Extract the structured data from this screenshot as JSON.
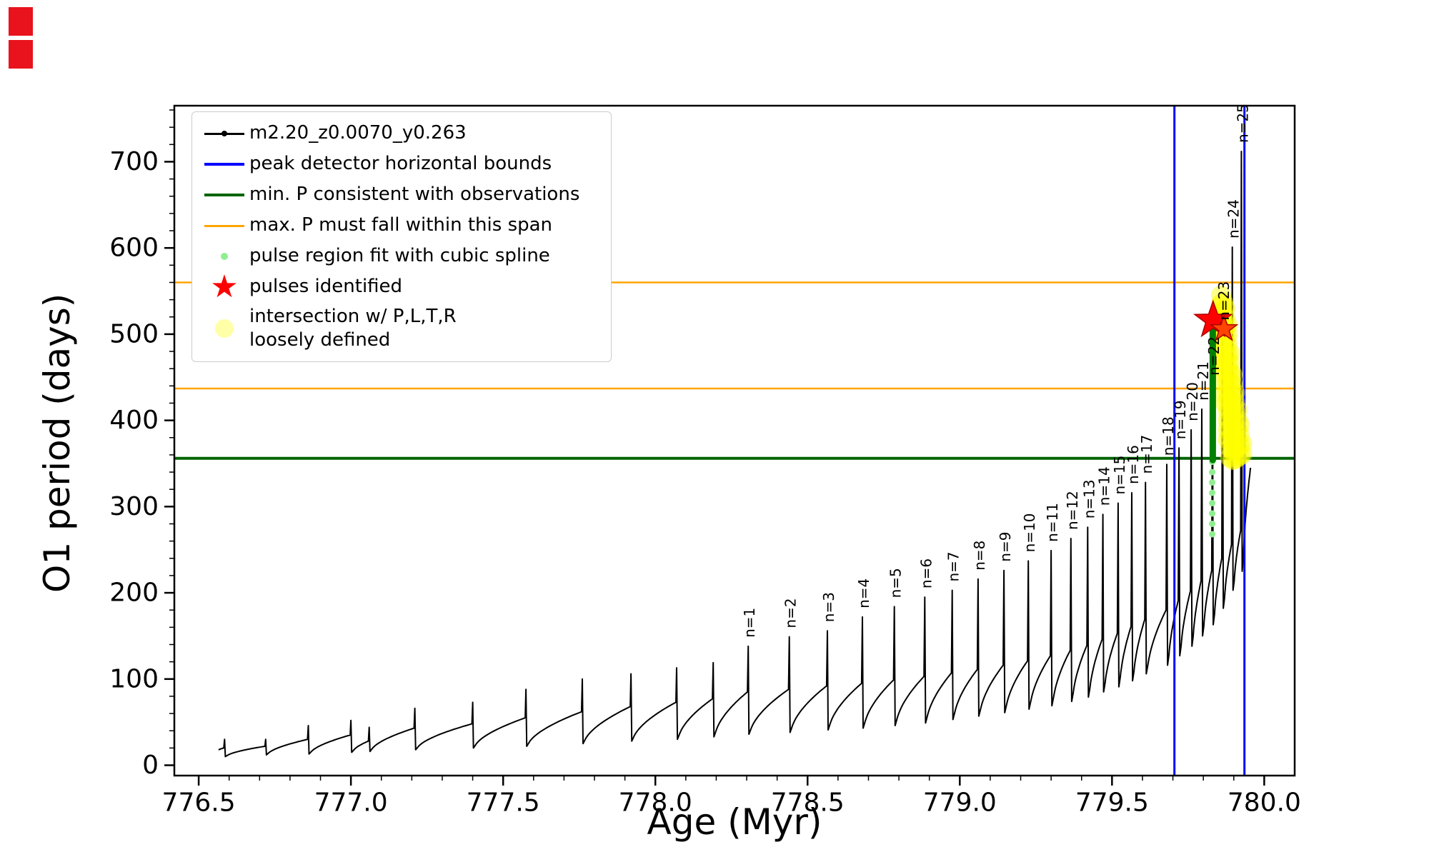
{
  "chart_data": {
    "type": "line",
    "title": "",
    "xlabel": "Age (Myr)",
    "ylabel": "O1 period (days)",
    "xlim": [
      776.42,
      780.1
    ],
    "ylim": [
      -12,
      765
    ],
    "x_ticks": [
      776.5,
      777.0,
      777.5,
      778.0,
      778.5,
      779.0,
      779.5,
      780.0
    ],
    "x_tick_labels": [
      "776.5",
      "777.0",
      "777.5",
      "778.0",
      "778.5",
      "779.0",
      "779.5",
      "780.0"
    ],
    "y_ticks": [
      0,
      100,
      200,
      300,
      400,
      500,
      600,
      700
    ],
    "y_tick_labels": [
      "0",
      "100",
      "200",
      "300",
      "400",
      "500",
      "600",
      "700"
    ],
    "x_minor_step": 0.1,
    "y_minor_step": 20,
    "series_name": "m2.20_z0.0070_y0.263",
    "series_color": "#000000",
    "vlines": [
      {
        "x": 779.705,
        "color": "#0000ff"
      },
      {
        "x": 779.935,
        "color": "#0000ff"
      }
    ],
    "hlines": [
      {
        "y": 356,
        "color": "#006400",
        "width": 4
      },
      {
        "y": 437,
        "color": "#ffa500",
        "width": 2.5
      },
      {
        "y": 560,
        "color": "#ffa500",
        "width": 2.5
      }
    ],
    "series_start": {
      "x": 776.565,
      "y": 18
    },
    "series_end": {
      "x": 779.955,
      "y": 345
    },
    "pulses": [
      {
        "x": 776.585,
        "peak": 30,
        "base": 20,
        "dip": 10
      },
      {
        "x": 776.72,
        "peak": 30,
        "base": 22,
        "dip": 12
      },
      {
        "x": 776.86,
        "peak": 46,
        "base": 30,
        "dip": 13
      },
      {
        "x": 777.0,
        "peak": 52,
        "base": 35,
        "dip": 15
      },
      {
        "x": 777.06,
        "peak": 44,
        "base": 28,
        "dip": 16
      },
      {
        "x": 777.21,
        "peak": 66,
        "base": 43,
        "dip": 18
      },
      {
        "x": 777.4,
        "peak": 73,
        "base": 48,
        "dip": 20
      },
      {
        "x": 777.575,
        "peak": 88,
        "base": 55,
        "dip": 22
      },
      {
        "x": 777.76,
        "peak": 100,
        "base": 62,
        "dip": 25
      },
      {
        "x": 777.92,
        "peak": 106,
        "base": 68,
        "dip": 28
      },
      {
        "x": 778.07,
        "peak": 113,
        "base": 73,
        "dip": 30
      },
      {
        "x": 778.19,
        "peak": 119,
        "base": 77,
        "dip": 33
      },
      {
        "x": 778.305,
        "peak": 138,
        "base": 85,
        "dip": 36,
        "label": "n=1"
      },
      {
        "x": 778.44,
        "peak": 149,
        "base": 88,
        "dip": 38,
        "label": "n=2"
      },
      {
        "x": 778.565,
        "peak": 156,
        "base": 92,
        "dip": 41,
        "label": "n=3"
      },
      {
        "x": 778.68,
        "peak": 172,
        "base": 95,
        "dip": 43,
        "label": "n=4"
      },
      {
        "x": 778.785,
        "peak": 184,
        "base": 99,
        "dip": 46,
        "label": "n=5"
      },
      {
        "x": 778.885,
        "peak": 195,
        "base": 103,
        "dip": 49,
        "label": "n=6"
      },
      {
        "x": 778.975,
        "peak": 203,
        "base": 107,
        "dip": 53,
        "label": "n=7"
      },
      {
        "x": 779.06,
        "peak": 216,
        "base": 111,
        "dip": 57,
        "label": "n=8"
      },
      {
        "x": 779.145,
        "peak": 226,
        "base": 116,
        "dip": 61,
        "label": "n=9"
      },
      {
        "x": 779.225,
        "peak": 237,
        "base": 121,
        "dip": 65,
        "label": "n=10"
      },
      {
        "x": 779.3,
        "peak": 249,
        "base": 127,
        "dip": 69,
        "label": "n=11"
      },
      {
        "x": 779.365,
        "peak": 263,
        "base": 133,
        "dip": 74,
        "label": "n=12"
      },
      {
        "x": 779.42,
        "peak": 276,
        "base": 139,
        "dip": 79,
        "label": "n=13"
      },
      {
        "x": 779.47,
        "peak": 291,
        "base": 146,
        "dip": 85,
        "label": "n=14"
      },
      {
        "x": 779.52,
        "peak": 304,
        "base": 153,
        "dip": 91,
        "label": "n=15"
      },
      {
        "x": 779.565,
        "peak": 316,
        "base": 161,
        "dip": 98,
        "label": "n=16"
      },
      {
        "x": 779.61,
        "peak": 328,
        "base": 169,
        "dip": 106,
        "label": "n=17"
      },
      {
        "x": 779.68,
        "peak": 349,
        "base": 180,
        "dip": 116,
        "label": "n=18"
      },
      {
        "x": 779.72,
        "peak": 368,
        "base": 191,
        "dip": 127,
        "label": "n=19"
      },
      {
        "x": 779.76,
        "peak": 389,
        "base": 202,
        "dip": 138,
        "label": "n=20"
      },
      {
        "x": 779.795,
        "peak": 413,
        "base": 214,
        "dip": 150,
        "label": "n=21"
      },
      {
        "x": 779.83,
        "peak": 442,
        "base": 226,
        "dip": 163,
        "label": "n=22"
      },
      {
        "x": 779.863,
        "peak": 506,
        "base": 240,
        "dip": 182,
        "label": "n=23"
      },
      {
        "x": 779.895,
        "peak": 601,
        "base": 256,
        "dip": 203,
        "label": "n=24"
      },
      {
        "x": 779.925,
        "peak": 712,
        "base": 272,
        "dip": 225,
        "label": "n=25"
      }
    ],
    "spline_fit": {
      "color": "#90ee90",
      "dot_x": 779.829,
      "dot_radius": 4.5,
      "dots_y": [
        268,
        280,
        292,
        304,
        316,
        328,
        340,
        352
      ],
      "segment": {
        "x": 779.831,
        "y_from": 354,
        "y_to": 513,
        "width": 9,
        "color": "#008000"
      }
    },
    "stars": [
      {
        "x": 779.832,
        "y": 516,
        "size": 27,
        "color": "#ff0000"
      },
      {
        "x": 779.868,
        "y": 506,
        "size": 19,
        "color": "#ff4500"
      }
    ],
    "intersection_region": {
      "color": "#ffff00",
      "opacity": 0.45,
      "radius": 14,
      "columns": [
        {
          "x": 779.858,
          "from": 505,
          "to": 545,
          "step": 10
        },
        {
          "x": 779.865,
          "from": 460,
          "to": 542,
          "step": 11
        },
        {
          "x": 779.872,
          "from": 420,
          "to": 538,
          "step": 11
        },
        {
          "x": 779.88,
          "from": 378,
          "to": 512,
          "step": 11
        },
        {
          "x": 779.888,
          "from": 357,
          "to": 478,
          "step": 11
        },
        {
          "x": 779.896,
          "from": 354,
          "to": 462,
          "step": 11
        },
        {
          "x": 779.904,
          "from": 355,
          "to": 440,
          "step": 11
        },
        {
          "x": 779.912,
          "from": 357,
          "to": 418,
          "step": 11
        },
        {
          "x": 779.92,
          "from": 359,
          "to": 396,
          "step": 12
        },
        {
          "x": 779.928,
          "from": 361,
          "to": 374,
          "step": 12
        }
      ]
    },
    "legend": [
      {
        "label": "m2.20_z0.0070_y0.263",
        "marker": "line-dot",
        "color": "#000000"
      },
      {
        "label": "peak detector horizontal bounds",
        "marker": "line",
        "color": "#0000ff"
      },
      {
        "label": "min. P consistent with observations",
        "marker": "line",
        "color": "#006400"
      },
      {
        "label": "max. P must fall within this span",
        "marker": "line",
        "color": "#ffa500"
      },
      {
        "label": "pulse region fit with cubic spline",
        "marker": "dot",
        "color": "#90ee90"
      },
      {
        "label": "pulses identified",
        "marker": "star",
        "color": "#ff0000"
      },
      {
        "label": "intersection w/ P,L,T,R",
        "label2": "loosely defined",
        "marker": "dot-large",
        "color": "#ffff99"
      }
    ]
  }
}
